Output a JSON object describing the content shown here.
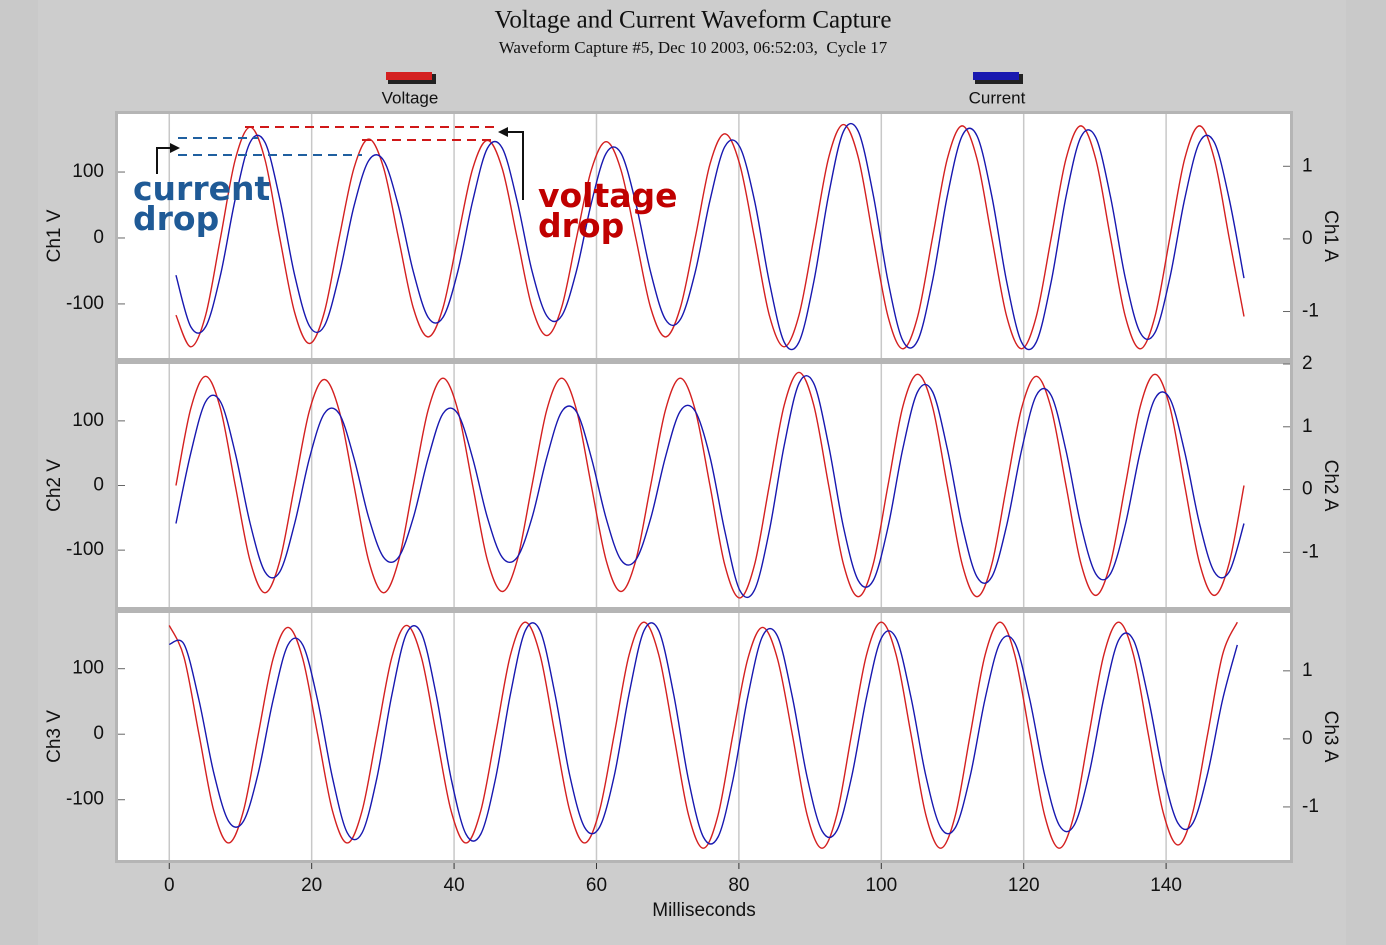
{
  "chart_data": [
    {
      "type": "line",
      "title": "Voltage and Current Waveform Capture",
      "subtitle": "Waveform Capture #5, Dec 10 2003, 06:52:03,  Cycle 17",
      "legend": "top",
      "ylabel": "Ch1 V",
      "y2label": "Ch1 A",
      "grid": "x",
      "xlim": [
        -7.2,
        157.4
      ],
      "xticks": [
        0,
        20,
        40,
        60,
        80,
        100,
        120,
        140
      ],
      "ylim": [
        -182,
        188
      ],
      "yticks": [
        -100,
        0,
        100
      ],
      "y2lim": [
        -1.64,
        1.72
      ],
      "y2ticks": [
        -1,
        0,
        1
      ],
      "annotations": [
        {
          "text": "current drop",
          "color": "#1f5a96"
        },
        {
          "text": "voltage drop",
          "color": "#c00000"
        }
      ],
      "x": [
        0.94,
        3.02,
        5.11,
        7.19,
        9.27,
        11.36,
        13.44,
        15.52,
        17.61,
        19.69,
        21.77,
        23.86,
        25.94,
        28.02,
        30.11,
        32.19,
        34.27,
        36.36,
        38.44,
        40.52,
        42.61,
        44.69,
        46.77,
        48.86,
        50.94,
        53.02,
        55.11,
        57.19,
        59.27,
        61.36,
        63.44,
        65.52,
        67.61,
        69.69,
        71.77,
        73.86,
        75.94,
        78.02,
        80.11,
        82.19,
        84.27,
        86.36,
        88.44,
        90.52,
        92.61,
        94.69,
        96.77,
        98.86,
        100.94,
        103.02,
        105.11,
        107.19,
        109.27,
        111.36,
        113.44,
        115.52,
        117.61,
        119.69,
        121.77,
        123.86,
        125.94,
        128.02,
        130.11,
        132.19,
        134.27,
        136.36,
        138.44,
        140.52,
        142.61,
        144.69,
        146.77,
        148.86,
        150.94
      ],
      "series": [
        {
          "name": "Voltage",
          "color": "#d42020",
          "values": [
            -117,
            -165,
            -117,
            0,
            119,
            168,
            119,
            0,
            -113,
            -160,
            -113,
            0,
            106,
            150,
            106,
            0,
            -106,
            -150,
            -106,
            0,
            105,
            148,
            105,
            0,
            -105,
            -148,
            -105,
            0,
            103,
            146,
            103,
            0,
            -106,
            -150,
            -106,
            0,
            112,
            158,
            112,
            0,
            -117,
            -165,
            -117,
            0,
            122,
            172,
            122,
            0,
            -119,
            -168,
            -119,
            0,
            120,
            170,
            120,
            0,
            -119,
            -168,
            -119,
            0,
            120,
            170,
            120,
            0,
            -119,
            -168,
            -119,
            0,
            120,
            170,
            120,
            0,
            -119
          ]
        },
        {
          "name": "Current",
          "color": "#1818b0",
          "axis": "y2",
          "values": [
            -0.5,
            -1.21,
            -1.21,
            -0.5,
            0.55,
            1.33,
            1.33,
            0.55,
            -0.5,
            -1.2,
            -1.2,
            -0.5,
            0.45,
            1.08,
            1.08,
            0.45,
            -0.45,
            -1.08,
            -1.08,
            -0.45,
            0.52,
            1.25,
            1.25,
            0.52,
            -0.44,
            -1.06,
            -1.06,
            -0.44,
            0.49,
            1.18,
            1.18,
            0.49,
            -0.46,
            -1.11,
            -1.11,
            -0.46,
            0.53,
            1.27,
            1.27,
            0.53,
            -0.59,
            -1.42,
            -1.42,
            -0.59,
            0.61,
            1.48,
            1.48,
            0.61,
            -0.58,
            -1.4,
            -1.4,
            -0.58,
            0.59,
            1.42,
            1.42,
            0.59,
            -0.59,
            -1.42,
            -1.42,
            -0.59,
            0.58,
            1.4,
            1.4,
            0.58,
            -0.54,
            -1.29,
            -1.29,
            -0.54,
            0.55,
            1.33,
            1.33,
            0.55,
            -0.54
          ]
        }
      ]
    },
    {
      "type": "line",
      "ylabel": "Ch2 V",
      "y2label": "Ch2 A",
      "grid": "x",
      "xlim": [
        -7.2,
        157.4
      ],
      "xticks": [
        0,
        20,
        40,
        60,
        80,
        100,
        120,
        140
      ],
      "ylim": [
        -188,
        188
      ],
      "yticks": [
        -100,
        0,
        100
      ],
      "y2lim": [
        -1.87,
        2
      ],
      "y2ticks": [
        -1,
        0,
        1,
        2
      ],
      "x": [
        0.94,
        3.02,
        5.11,
        7.19,
        9.27,
        11.36,
        13.44,
        15.52,
        17.61,
        19.69,
        21.77,
        23.86,
        25.94,
        28.02,
        30.11,
        32.19,
        34.27,
        36.36,
        38.44,
        40.52,
        42.61,
        44.69,
        46.77,
        48.86,
        50.94,
        53.02,
        55.11,
        57.19,
        59.27,
        61.36,
        63.44,
        65.52,
        67.61,
        69.69,
        71.77,
        73.86,
        75.94,
        78.02,
        80.11,
        82.19,
        84.27,
        86.36,
        88.44,
        90.52,
        92.61,
        94.69,
        96.77,
        98.86,
        100.94,
        103.02,
        105.11,
        107.19,
        109.27,
        111.36,
        113.44,
        115.52,
        117.61,
        119.69,
        121.77,
        123.86,
        125.94,
        128.02,
        130.11,
        132.19,
        134.27,
        136.36,
        138.44,
        140.52,
        142.61,
        144.69,
        146.77,
        148.86,
        150.94
      ],
      "series": [
        {
          "color": "#d42020",
          "values": [
            0,
            119,
            169,
            119,
            0,
            -117,
            -166,
            -117,
            0,
            116,
            164,
            116,
            0,
            -117,
            -166,
            -117,
            0,
            117,
            166,
            117,
            0,
            -116,
            -164,
            -116,
            0,
            117,
            166,
            117,
            0,
            -116,
            -164,
            -116,
            0,
            117,
            166,
            117,
            0,
            -123,
            -174,
            -123,
            0,
            124,
            175,
            124,
            0,
            -122,
            -172,
            -122,
            0,
            122,
            172,
            122,
            0,
            -122,
            -172,
            -122,
            0,
            119,
            169,
            119,
            0,
            -120,
            -170,
            -120,
            0,
            122,
            172,
            122,
            0,
            -120,
            -170,
            -120,
            0
          ]
        },
        {
          "color": "#1818b0",
          "axis": "y2",
          "values": [
            -0.54,
            0.58,
            1.4,
            1.4,
            0.58,
            -0.54,
            -1.31,
            -1.31,
            -0.54,
            0.5,
            1.21,
            1.21,
            0.5,
            -0.45,
            -1.08,
            -1.08,
            -0.45,
            0.5,
            1.21,
            1.21,
            0.5,
            -0.45,
            -1.08,
            -1.08,
            -0.45,
            0.51,
            1.24,
            1.24,
            0.51,
            -0.46,
            -1.12,
            -1.12,
            -0.46,
            0.52,
            1.25,
            1.25,
            0.52,
            -0.66,
            -1.6,
            -1.6,
            -0.66,
            0.7,
            1.69,
            1.69,
            0.7,
            -0.6,
            -1.45,
            -1.45,
            -0.6,
            0.65,
            1.56,
            1.56,
            0.65,
            -0.57,
            -1.39,
            -1.39,
            -0.57,
            0.62,
            1.5,
            1.5,
            0.62,
            -0.56,
            -1.34,
            -1.34,
            -0.56,
            0.6,
            1.45,
            1.45,
            0.6,
            -0.54,
            -1.31,
            -1.31,
            -0.54
          ]
        }
      ]
    },
    {
      "type": "line",
      "ylabel": "Ch3 V",
      "y2label": "Ch3 A",
      "grid": "x",
      "xlabel": "Milliseconds",
      "xlim": [
        -7.2,
        157.4
      ],
      "xticks": [
        0,
        20,
        40,
        60,
        80,
        100,
        120,
        140
      ],
      "ylim": [
        -192,
        185
      ],
      "yticks": [
        -100,
        0,
        100
      ],
      "y2lim": [
        -1.78,
        1.85
      ],
      "y2ticks": [
        -1,
        0,
        1
      ],
      "x": [
        0,
        2.08,
        4.17,
        6.25,
        8.33,
        10.42,
        12.5,
        14.58,
        16.67,
        18.75,
        20.83,
        22.92,
        25,
        27.08,
        29.17,
        31.25,
        33.33,
        35.42,
        37.5,
        39.58,
        41.67,
        43.75,
        45.83,
        47.92,
        50,
        52.08,
        54.17,
        56.25,
        58.33,
        60.42,
        62.5,
        64.58,
        66.67,
        68.75,
        70.83,
        72.92,
        75,
        77.08,
        79.17,
        81.25,
        83.33,
        85.42,
        87.5,
        89.58,
        91.67,
        93.75,
        95.83,
        97.92,
        100,
        102.08,
        104.17,
        106.25,
        108.33,
        110.42,
        112.5,
        114.58,
        116.67,
        118.75,
        120.83,
        122.92,
        125,
        127.08,
        129.17,
        131.25,
        133.33,
        135.42,
        137.5,
        139.58,
        141.67,
        143.75,
        145.83,
        147.92,
        150
      ],
      "series": [
        {
          "color": "#d42020",
          "values": [
            166,
            117,
            0,
            -117,
            -166,
            -117,
            0,
            115,
            163,
            115,
            0,
            -117,
            -166,
            -117,
            0,
            117,
            166,
            117,
            0,
            -117,
            -166,
            -117,
            0,
            121,
            171,
            121,
            0,
            -117,
            -166,
            -117,
            0,
            121,
            171,
            121,
            0,
            -123,
            -174,
            -123,
            0,
            115,
            163,
            115,
            0,
            -123,
            -174,
            -123,
            0,
            121,
            171,
            121,
            0,
            -123,
            -174,
            -123,
            0,
            121,
            171,
            121,
            0,
            -123,
            -174,
            -123,
            0,
            121,
            171,
            121,
            0,
            -119,
            -169,
            -119,
            0,
            121,
            171
          ]
        },
        {
          "color": "#1818b0",
          "axis": "y2",
          "values": [
            1.39,
            1.39,
            0.57,
            -0.5,
            -1.21,
            -1.21,
            -0.5,
            0.57,
            1.38,
            1.38,
            0.57,
            -0.57,
            -1.38,
            -1.38,
            -0.57,
            0.64,
            1.55,
            1.55,
            0.64,
            -0.58,
            -1.4,
            -1.4,
            -0.58,
            0.66,
            1.59,
            1.59,
            0.66,
            -0.54,
            -1.3,
            -1.3,
            -0.54,
            0.66,
            1.59,
            1.59,
            0.66,
            -0.6,
            -1.44,
            -1.44,
            -0.6,
            0.62,
            1.51,
            1.51,
            0.62,
            -0.56,
            -1.35,
            -1.35,
            -0.56,
            0.61,
            1.48,
            1.48,
            0.61,
            -0.54,
            -1.3,
            -1.3,
            -0.54,
            0.59,
            1.41,
            1.41,
            0.59,
            -0.52,
            -1.27,
            -1.27,
            -0.52,
            0.6,
            1.45,
            1.45,
            0.6,
            -0.51,
            -1.24,
            -1.24,
            -0.51,
            0.57,
            1.38
          ]
        }
      ]
    }
  ]
}
